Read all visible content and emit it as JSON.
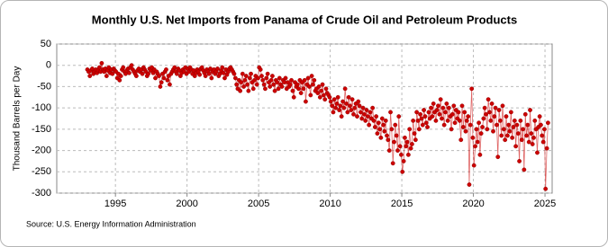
{
  "chart_data": {
    "type": "line",
    "title": "Monthly U.S. Net Imports from Panama of Crude Oil and Petroleum Products",
    "y_label": "Thousand Barrels per Day",
    "source": "Source: U.S. Energy Information Administration",
    "xlim": [
      1990.9,
      2025.5
    ],
    "xticks": [
      1995,
      2000,
      2005,
      2010,
      2015,
      2020,
      2025
    ],
    "ylim": [
      -300,
      50
    ],
    "yticks": [
      -300,
      -250,
      -200,
      -150,
      -100,
      -50,
      0,
      50
    ],
    "grid": true,
    "x": [
      1993.04,
      1993.13,
      1993.21,
      1993.29,
      1993.38,
      1993.46,
      1993.54,
      1993.63,
      1993.71,
      1993.79,
      1993.88,
      1993.96,
      1994.04,
      1994.13,
      1994.21,
      1994.29,
      1994.38,
      1994.46,
      1994.54,
      1994.63,
      1994.71,
      1994.79,
      1994.88,
      1994.96,
      1995.04,
      1995.13,
      1995.21,
      1995.29,
      1995.38,
      1995.46,
      1995.54,
      1995.63,
      1995.71,
      1995.79,
      1995.88,
      1995.96,
      1996.04,
      1996.13,
      1996.21,
      1996.29,
      1996.38,
      1996.46,
      1996.54,
      1996.63,
      1996.71,
      1996.79,
      1996.88,
      1996.96,
      1997.04,
      1997.13,
      1997.21,
      1997.29,
      1997.38,
      1997.46,
      1997.54,
      1997.63,
      1997.71,
      1997.79,
      1997.88,
      1997.96,
      1998.04,
      1998.13,
      1998.21,
      1998.29,
      1998.38,
      1998.46,
      1998.54,
      1998.63,
      1998.71,
      1998.79,
      1998.88,
      1998.96,
      1999.04,
      1999.13,
      1999.21,
      1999.29,
      1999.38,
      1999.46,
      1999.54,
      1999.63,
      1999.71,
      1999.79,
      1999.88,
      1999.96,
      2000.04,
      2000.13,
      2000.21,
      2000.29,
      2000.38,
      2000.46,
      2000.54,
      2000.63,
      2000.71,
      2000.79,
      2000.88,
      2000.96,
      2001.04,
      2001.13,
      2001.21,
      2001.29,
      2001.38,
      2001.46,
      2001.54,
      2001.63,
      2001.71,
      2001.79,
      2001.88,
      2001.96,
      2002.04,
      2002.13,
      2002.21,
      2002.29,
      2002.38,
      2002.46,
      2002.54,
      2002.63,
      2002.71,
      2002.79,
      2002.88,
      2002.96,
      2003.04,
      2003.13,
      2003.21,
      2003.29,
      2003.38,
      2003.46,
      2003.54,
      2003.63,
      2003.71,
      2003.79,
      2003.88,
      2003.96,
      2004.04,
      2004.13,
      2004.21,
      2004.29,
      2004.38,
      2004.46,
      2004.54,
      2004.63,
      2004.71,
      2004.79,
      2004.88,
      2004.96,
      2005.04,
      2005.13,
      2005.21,
      2005.29,
      2005.38,
      2005.46,
      2005.54,
      2005.63,
      2005.71,
      2005.79,
      2005.88,
      2005.96,
      2006.04,
      2006.13,
      2006.21,
      2006.29,
      2006.38,
      2006.46,
      2006.54,
      2006.63,
      2006.71,
      2006.79,
      2006.88,
      2006.96,
      2007.04,
      2007.13,
      2007.21,
      2007.29,
      2007.38,
      2007.46,
      2007.54,
      2007.63,
      2007.71,
      2007.79,
      2007.88,
      2007.96,
      2008.04,
      2008.13,
      2008.21,
      2008.29,
      2008.38,
      2008.46,
      2008.54,
      2008.63,
      2008.71,
      2008.79,
      2008.88,
      2008.96,
      2009.04,
      2009.13,
      2009.21,
      2009.29,
      2009.38,
      2009.46,
      2009.54,
      2009.63,
      2009.71,
      2009.79,
      2009.88,
      2009.96,
      2010.04,
      2010.13,
      2010.21,
      2010.29,
      2010.38,
      2010.46,
      2010.54,
      2010.63,
      2010.71,
      2010.79,
      2010.88,
      2010.96,
      2011.04,
      2011.13,
      2011.21,
      2011.29,
      2011.38,
      2011.46,
      2011.54,
      2011.63,
      2011.71,
      2011.79,
      2011.88,
      2011.96,
      2012.04,
      2012.13,
      2012.21,
      2012.29,
      2012.38,
      2012.46,
      2012.54,
      2012.63,
      2012.71,
      2012.79,
      2012.88,
      2012.96,
      2013.04,
      2013.13,
      2013.21,
      2013.29,
      2013.38,
      2013.46,
      2013.54,
      2013.63,
      2013.71,
      2013.79,
      2013.88,
      2013.96,
      2014.04,
      2014.13,
      2014.21,
      2014.29,
      2014.38,
      2014.46,
      2014.54,
      2014.63,
      2014.71,
      2014.79,
      2014.88,
      2014.96,
      2015.04,
      2015.13,
      2015.21,
      2015.29,
      2015.38,
      2015.46,
      2015.54,
      2015.63,
      2015.71,
      2015.79,
      2015.88,
      2015.96,
      2016.04,
      2016.13,
      2016.21,
      2016.29,
      2016.38,
      2016.46,
      2016.54,
      2016.63,
      2016.71,
      2016.79,
      2016.88,
      2016.96,
      2017.04,
      2017.13,
      2017.21,
      2017.29,
      2017.38,
      2017.46,
      2017.54,
      2017.63,
      2017.71,
      2017.79,
      2017.88,
      2017.96,
      2018.04,
      2018.13,
      2018.21,
      2018.29,
      2018.38,
      2018.46,
      2018.54,
      2018.63,
      2018.71,
      2018.79,
      2018.88,
      2018.96,
      2019.04,
      2019.13,
      2019.21,
      2019.29,
      2019.38,
      2019.46,
      2019.54,
      2019.63,
      2019.71,
      2019.79,
      2019.88,
      2019.96,
      2020.04,
      2020.13,
      2020.21,
      2020.29,
      2020.38,
      2020.46,
      2020.54,
      2020.63,
      2020.71,
      2020.79,
      2020.88,
      2020.96,
      2021.04,
      2021.13,
      2021.21,
      2021.29,
      2021.38,
      2021.46,
      2021.54,
      2021.63,
      2021.71,
      2021.79,
      2021.88,
      2021.96,
      2022.04,
      2022.13,
      2022.21,
      2022.29,
      2022.38,
      2022.46,
      2022.54,
      2022.63,
      2022.71,
      2022.79,
      2022.88,
      2022.96,
      2023.04,
      2023.13,
      2023.21,
      2023.29,
      2023.38,
      2023.46,
      2023.54,
      2023.63,
      2023.71,
      2023.79,
      2023.88,
      2023.96,
      2024.04,
      2024.13,
      2024.21,
      2024.29,
      2024.38,
      2024.46,
      2024.54,
      2024.63,
      2024.71,
      2024.79,
      2024.88,
      2024.96,
      2025.04,
      2025.13,
      2025.21
    ],
    "series": [
      {
        "color": "#cc0000",
        "values": [
          -10,
          -15,
          -25,
          -12,
          -8,
          -20,
          -15,
          -10,
          -18,
          -12,
          -5,
          -15,
          5,
          -10,
          -15,
          -8,
          -25,
          -12,
          -5,
          -18,
          -10,
          -20,
          -8,
          -12,
          -15,
          -30,
          -20,
          -35,
          -25,
          -10,
          -5,
          -15,
          -20,
          -12,
          -8,
          -18,
          -5,
          0,
          -10,
          -15,
          -20,
          -25,
          -12,
          -8,
          -15,
          -10,
          -20,
          -5,
          -10,
          -15,
          -25,
          -20,
          -8,
          -12,
          -5,
          -18,
          -10,
          -30,
          -15,
          -20,
          -25,
          -50,
          -40,
          -20,
          -30,
          -15,
          -10,
          -35,
          -25,
          -45,
          -20,
          -15,
          -10,
          -5,
          -15,
          -20,
          -8,
          -12,
          -25,
          -18,
          -10,
          -15,
          -5,
          -20,
          -8,
          -15,
          -5,
          -10,
          -20,
          -12,
          -25,
          -18,
          -10,
          -15,
          -22,
          -8,
          -5,
          -12,
          -18,
          -25,
          -10,
          -15,
          -20,
          -8,
          -30,
          -15,
          -10,
          -20,
          -15,
          -8,
          -25,
          -20,
          -12,
          -5,
          -18,
          -30,
          -10,
          -22,
          -15,
          -8,
          -5,
          -10,
          -15,
          -20,
          -30,
          -45,
          -55,
          -35,
          -60,
          -40,
          -20,
          -50,
          -35,
          -25,
          -45,
          -60,
          -30,
          -20,
          -40,
          -55,
          -35,
          -25,
          -45,
          -30,
          -5,
          -10,
          -25,
          -35,
          -45,
          -55,
          -30,
          -20,
          -40,
          -50,
          -35,
          -25,
          -45,
          -60,
          -35,
          -40,
          -55,
          -30,
          -45,
          -50,
          -35,
          -40,
          -30,
          -55,
          -40,
          -50,
          -45,
          -35,
          -60,
          -75,
          -40,
          -50,
          -45,
          -55,
          -35,
          -65,
          -40,
          -55,
          -35,
          -85,
          -45,
          -30,
          -50,
          -70,
          -25,
          -45,
          -35,
          -60,
          -55,
          -65,
          -50,
          -75,
          -60,
          -45,
          -70,
          -80,
          -55,
          -65,
          -70,
          -75,
          -85,
          -95,
          -110,
          -80,
          -100,
          -90,
          -75,
          -105,
          -95,
          -120,
          -85,
          -100,
          -55,
          -90,
          -110,
          -75,
          -95,
          -105,
          -80,
          -115,
          -100,
          -90,
          -120,
          -85,
          -95,
          -110,
          -125,
          -100,
          -115,
          -130,
          -105,
          -120,
          -140,
          -110,
          -125,
          -100,
          -130,
          -145,
          -120,
          -160,
          -135,
          -150,
          -170,
          -125,
          -140,
          -155,
          -130,
          -165,
          -175,
          -200,
          -110,
          -150,
          -230,
          -180,
          -140,
          -165,
          -200,
          -120,
          -190,
          -210,
          -250,
          -225,
          -170,
          -190,
          -180,
          -210,
          -150,
          -195,
          -185,
          -130,
          -160,
          -175,
          -110,
          -130,
          -150,
          -115,
          -125,
          -140,
          -105,
          -120,
          -135,
          -145,
          -110,
          -125,
          -100,
          -120,
          -90,
          -110,
          -130,
          -105,
          -95,
          -115,
          -80,
          -125,
          -100,
          -140,
          -110,
          -90,
          -130,
          -100,
          -120,
          -150,
          -115,
          -95,
          -135,
          -105,
          -125,
          -110,
          -130,
          -175,
          -95,
          -145,
          -110,
          -155,
          -130,
          -120,
          -280,
          -140,
          -55,
          -170,
          -235,
          -190,
          -150,
          -180,
          -135,
          -210,
          -160,
          -145,
          -125,
          -100,
          -115,
          -150,
          -80,
          -110,
          -130,
          -90,
          -155,
          -120,
          -100,
          -140,
          -215,
          -105,
          -130,
          -165,
          -95,
          -150,
          -175,
          -120,
          -165,
          -140,
          -155,
          -110,
          -170,
          -145,
          -130,
          -190,
          -140,
          -160,
          -225,
          -130,
          -175,
          -150,
          -245,
          -115,
          -165,
          -140,
          -180,
          -105,
          -160,
          -185,
          -170,
          -130,
          -150,
          -205,
          -145,
          -120,
          -140,
          -165,
          -180,
          -150,
          -290,
          -195,
          -135
        ]
      }
    ]
  }
}
